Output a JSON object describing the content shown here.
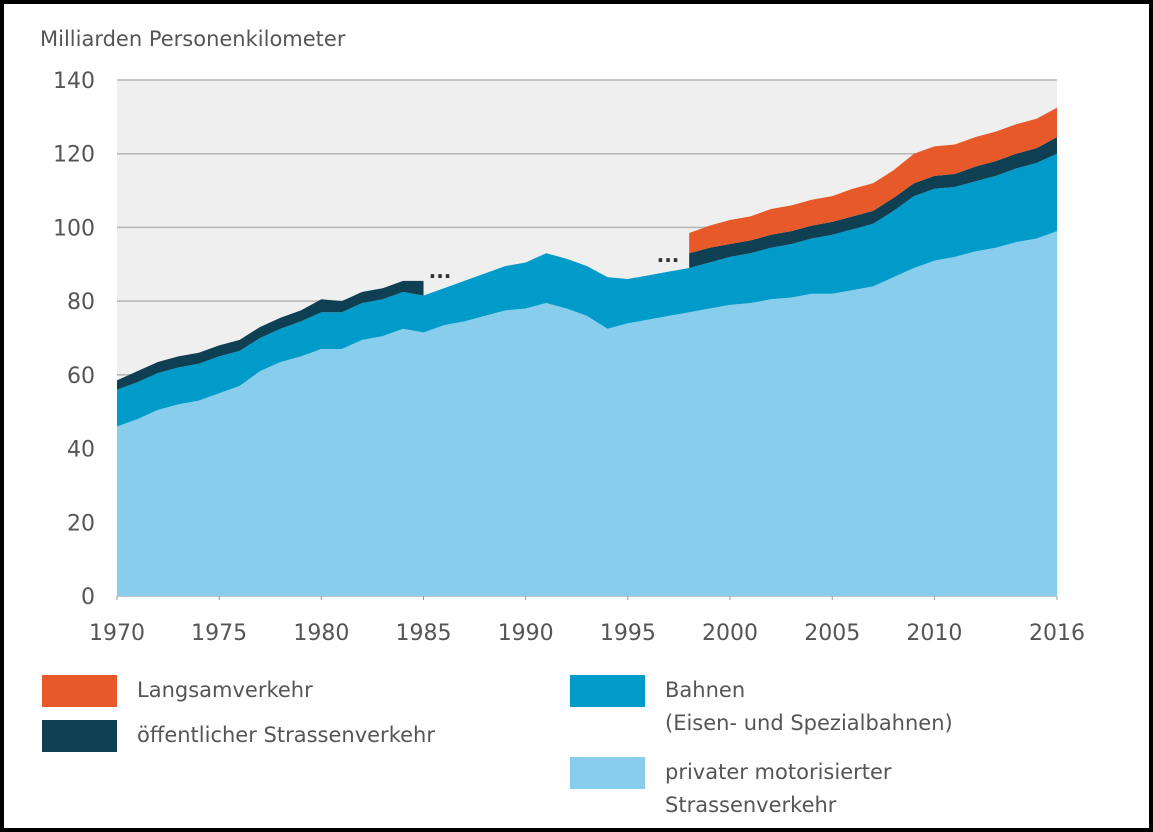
{
  "chart_data": {
    "type": "stacked_area",
    "ylabel": "Milliarden Personenkilometer",
    "x": [
      1970,
      1971,
      1972,
      1973,
      1974,
      1975,
      1976,
      1977,
      1978,
      1979,
      1980,
      1981,
      1982,
      1983,
      1984,
      1985,
      1986,
      1987,
      1988,
      1989,
      1990,
      1991,
      1992,
      1993,
      1994,
      1995,
      1996,
      1997,
      1998,
      1999,
      2000,
      2001,
      2002,
      2003,
      2004,
      2005,
      2006,
      2007,
      2008,
      2009,
      2010,
      2011,
      2012,
      2013,
      2014,
      2015,
      2016
    ],
    "xlim": [
      1970,
      2016
    ],
    "xticks": [
      1970,
      1975,
      1980,
      1985,
      1990,
      1995,
      2000,
      2005,
      2010,
      2016
    ],
    "ylim": [
      0,
      140
    ],
    "yticks": [
      0,
      20,
      40,
      60,
      80,
      100,
      120,
      140
    ],
    "grid": true,
    "annotations": [
      "...",
      "..."
    ],
    "series": [
      {
        "name": "privater motorisierter\nStrassenverkehr",
        "color": "#88ceec",
        "values": [
          46,
          48,
          50.5,
          52,
          53,
          55,
          57,
          61,
          63.5,
          65,
          67,
          67,
          69.5,
          70.5,
          72.5,
          71.5,
          73.5,
          74.5,
          76,
          77.5,
          78,
          79.5,
          78,
          76,
          72.5,
          74,
          75,
          76,
          77,
          78,
          79,
          79.5,
          80.5,
          81,
          82,
          82,
          83,
          84,
          86.5,
          89,
          91,
          92,
          93.5,
          94.5,
          96,
          97,
          99
        ]
      },
      {
        "name": "Bahnen\n(Eisen- und Spezialbahnen)",
        "color": "#009bc9",
        "values": [
          10,
          10,
          10,
          10,
          10,
          10,
          9.5,
          9,
          9,
          9.5,
          10,
          10,
          10,
          10,
          10,
          10,
          10,
          11,
          11.5,
          12,
          12.5,
          13.5,
          13.5,
          13.5,
          14,
          12,
          12,
          12,
          12,
          12.5,
          13,
          13.5,
          14,
          14.5,
          15,
          16,
          16.5,
          17,
          18,
          19.5,
          19.5,
          19,
          19,
          19.5,
          20,
          20.5,
          21
        ]
      },
      {
        "name": "öffentlicher Strassenverkehr",
        "color": "#0f3f52",
        "values": [
          2.5,
          3,
          3,
          3,
          3,
          3,
          3,
          3,
          3,
          3,
          3.5,
          3,
          3,
          3,
          3,
          4,
          null,
          null,
          null,
          null,
          null,
          null,
          null,
          null,
          null,
          null,
          null,
          null,
          4,
          4,
          3.5,
          3.5,
          3.5,
          3.5,
          3.5,
          3.5,
          3.5,
          3.5,
          3.5,
          3.5,
          3.5,
          3.5,
          4,
          4,
          4,
          4,
          4.5
        ]
      },
      {
        "name": "Langsamverkehr",
        "color": "#e8592a",
        "values": [
          null,
          null,
          null,
          null,
          null,
          null,
          null,
          null,
          null,
          null,
          null,
          null,
          null,
          null,
          null,
          null,
          null,
          null,
          null,
          null,
          null,
          null,
          null,
          null,
          null,
          null,
          null,
          null,
          5.5,
          6,
          6.5,
          6.5,
          7,
          7,
          7,
          7,
          7.5,
          7.5,
          7.5,
          8,
          8,
          8,
          8,
          8,
          8,
          8,
          8
        ]
      }
    ]
  }
}
